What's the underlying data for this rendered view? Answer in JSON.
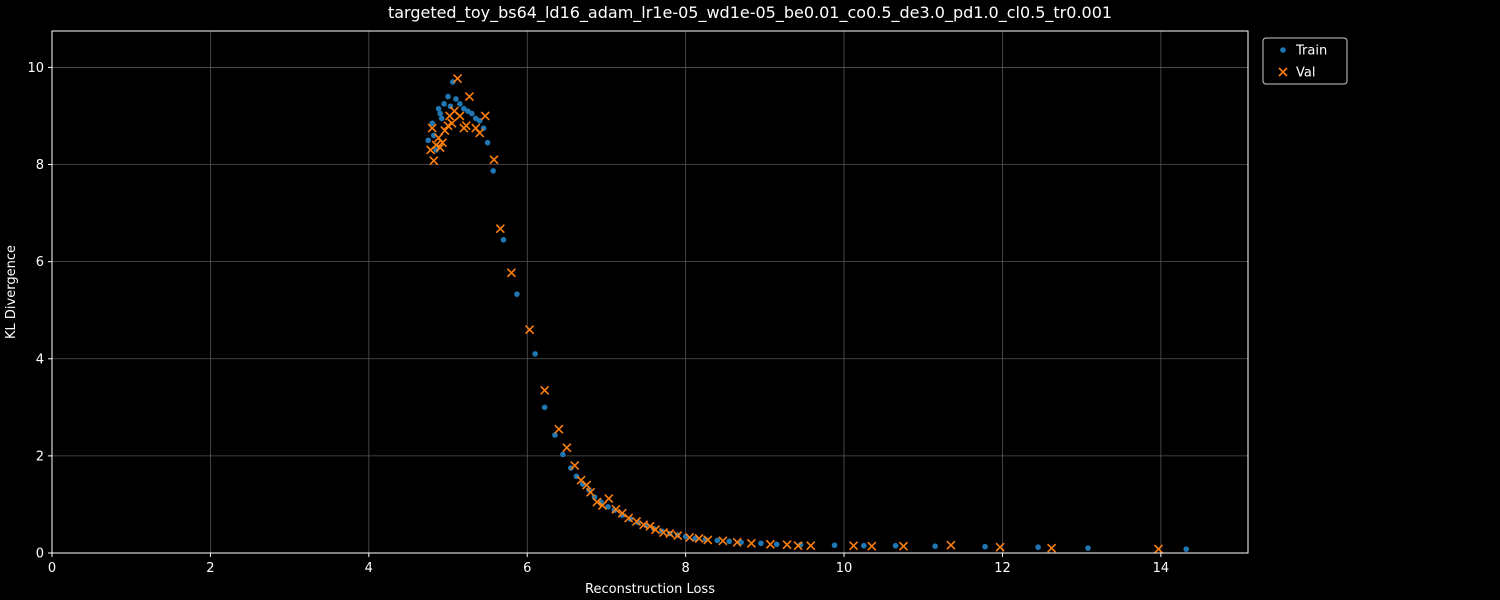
{
  "chart_data": {
    "type": "scatter",
    "title": "targeted_toy_bs64_ld16_adam_lr1e-05_wd1e-05_be0.01_co0.5_de3.0_pd1.0_cl0.5_tr0.001",
    "xlabel": "Reconstruction Loss",
    "ylabel": "KL Divergence",
    "xlim": [
      0,
      15.1
    ],
    "ylim": [
      0,
      10.75
    ],
    "xticks": [
      0,
      2,
      4,
      6,
      8,
      10,
      12,
      14
    ],
    "yticks": [
      0,
      2,
      4,
      6,
      8,
      10
    ],
    "grid": true,
    "legend_position": "outside-top-right",
    "colors": {
      "Train": "#1f77b4",
      "Val": "#ff7f0e",
      "background": "#000000",
      "grid": "#555555"
    },
    "series": [
      {
        "name": "Train",
        "marker": "circle",
        "points": [
          [
            4.75,
            8.5
          ],
          [
            4.8,
            8.85
          ],
          [
            4.82,
            8.6
          ],
          [
            4.85,
            8.3
          ],
          [
            4.88,
            9.15
          ],
          [
            4.9,
            9.05
          ],
          [
            4.92,
            8.95
          ],
          [
            4.95,
            9.25
          ],
          [
            5.0,
            9.4
          ],
          [
            5.03,
            9.2
          ],
          [
            5.06,
            9.7
          ],
          [
            5.1,
            9.35
          ],
          [
            5.15,
            9.25
          ],
          [
            5.2,
            9.15
          ],
          [
            5.25,
            9.1
          ],
          [
            5.3,
            9.05
          ],
          [
            5.35,
            8.95
          ],
          [
            5.4,
            8.9
          ],
          [
            5.45,
            8.75
          ],
          [
            5.5,
            8.45
          ],
          [
            5.57,
            7.87
          ],
          [
            5.7,
            6.45
          ],
          [
            5.87,
            5.33
          ],
          [
            6.1,
            4.1
          ],
          [
            6.22,
            3.0
          ],
          [
            6.35,
            2.43
          ],
          [
            6.45,
            2.03
          ],
          [
            6.55,
            1.75
          ],
          [
            6.62,
            1.58
          ],
          [
            6.7,
            1.42
          ],
          [
            6.78,
            1.3
          ],
          [
            6.85,
            1.15
          ],
          [
            6.93,
            1.05
          ],
          [
            7.02,
            0.95
          ],
          [
            7.1,
            0.88
          ],
          [
            7.2,
            0.78
          ],
          [
            7.3,
            0.7
          ],
          [
            7.4,
            0.63
          ],
          [
            7.5,
            0.57
          ],
          [
            7.6,
            0.5
          ],
          [
            7.7,
            0.45
          ],
          [
            7.8,
            0.4
          ],
          [
            7.9,
            0.37
          ],
          [
            8.0,
            0.34
          ],
          [
            8.12,
            0.3
          ],
          [
            8.25,
            0.28
          ],
          [
            8.4,
            0.26
          ],
          [
            8.55,
            0.24
          ],
          [
            8.7,
            0.22
          ],
          [
            8.95,
            0.2
          ],
          [
            9.15,
            0.18
          ],
          [
            9.45,
            0.17
          ],
          [
            9.88,
            0.16
          ],
          [
            10.25,
            0.15
          ],
          [
            10.65,
            0.15
          ],
          [
            11.15,
            0.14
          ],
          [
            11.78,
            0.13
          ],
          [
            12.45,
            0.12
          ],
          [
            13.08,
            0.1
          ],
          [
            14.32,
            0.08
          ]
        ]
      },
      {
        "name": "Val",
        "marker": "x",
        "points": [
          [
            4.78,
            8.3
          ],
          [
            4.8,
            8.75
          ],
          [
            4.82,
            8.08
          ],
          [
            4.85,
            8.4
          ],
          [
            4.88,
            8.55
          ],
          [
            4.9,
            8.35
          ],
          [
            4.93,
            8.45
          ],
          [
            4.96,
            8.7
          ],
          [
            5.0,
            8.8
          ],
          [
            5.02,
            9.0
          ],
          [
            5.05,
            8.85
          ],
          [
            5.08,
            9.1
          ],
          [
            5.12,
            9.77
          ],
          [
            5.15,
            9.0
          ],
          [
            5.2,
            8.75
          ],
          [
            5.23,
            8.8
          ],
          [
            5.27,
            9.4
          ],
          [
            5.35,
            8.75
          ],
          [
            5.4,
            8.65
          ],
          [
            5.47,
            9.0
          ],
          [
            5.58,
            8.1
          ],
          [
            5.66,
            6.68
          ],
          [
            5.8,
            5.77
          ],
          [
            6.03,
            4.6
          ],
          [
            6.22,
            3.35
          ],
          [
            6.4,
            2.55
          ],
          [
            6.5,
            2.17
          ],
          [
            6.6,
            1.8
          ],
          [
            6.68,
            1.5
          ],
          [
            6.75,
            1.4
          ],
          [
            6.8,
            1.25
          ],
          [
            6.88,
            1.05
          ],
          [
            6.95,
            0.98
          ],
          [
            7.03,
            1.12
          ],
          [
            7.12,
            0.9
          ],
          [
            7.2,
            0.82
          ],
          [
            7.28,
            0.72
          ],
          [
            7.38,
            0.65
          ],
          [
            7.47,
            0.58
          ],
          [
            7.55,
            0.55
          ],
          [
            7.62,
            0.48
          ],
          [
            7.72,
            0.42
          ],
          [
            7.8,
            0.4
          ],
          [
            7.9,
            0.36
          ],
          [
            8.05,
            0.32
          ],
          [
            8.17,
            0.3
          ],
          [
            8.28,
            0.27
          ],
          [
            8.47,
            0.25
          ],
          [
            8.65,
            0.22
          ],
          [
            8.83,
            0.2
          ],
          [
            9.07,
            0.18
          ],
          [
            9.28,
            0.17
          ],
          [
            9.42,
            0.15
          ],
          [
            9.58,
            0.15
          ],
          [
            10.12,
            0.15
          ],
          [
            10.35,
            0.14
          ],
          [
            10.75,
            0.14
          ],
          [
            11.35,
            0.16
          ],
          [
            11.97,
            0.12
          ],
          [
            12.62,
            0.1
          ],
          [
            13.97,
            0.08
          ]
        ]
      }
    ]
  }
}
